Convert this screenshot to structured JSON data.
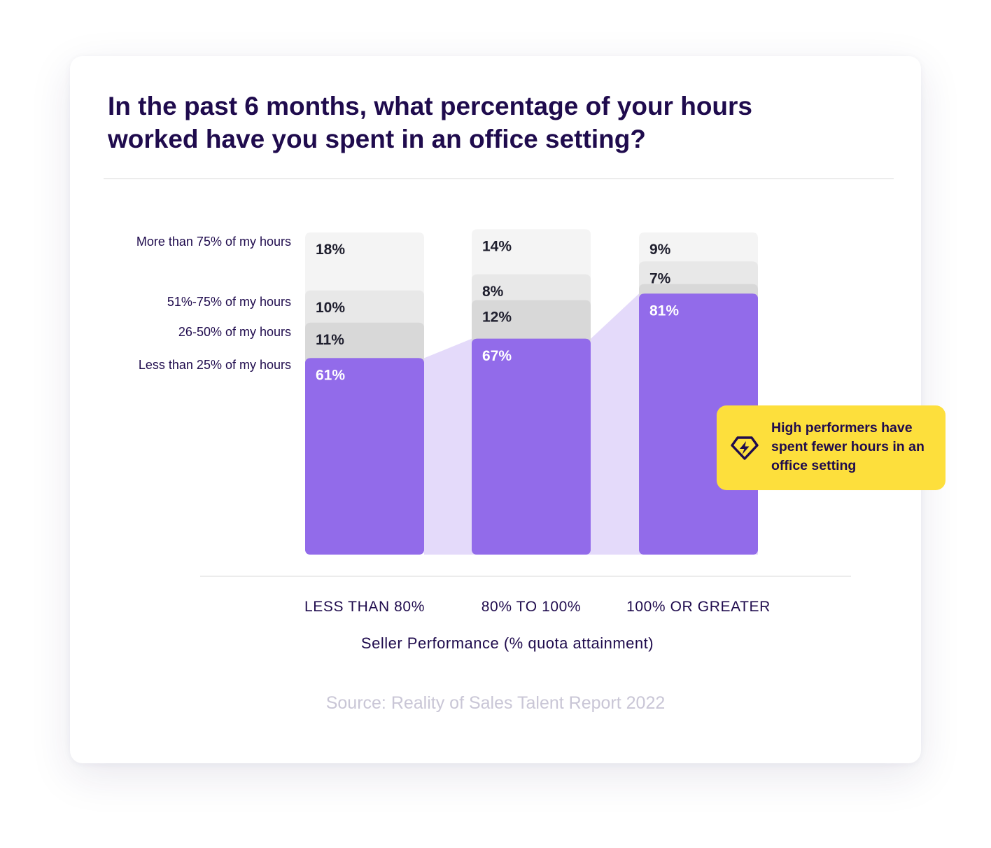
{
  "title": "In the past 6 months, what percentage of your hours worked have you spent in an office setting?",
  "source": "Source: Reality of Sales Talent Report 2022",
  "callout": {
    "text": "High performers have spent fewer hours in an office setting",
    "icon": "gem-lightning-icon"
  },
  "colors": {
    "title": "#1f0b4d",
    "accent": "#926bea",
    "accent_light": "#e4dafa",
    "callout_bg": "#fddf3c",
    "seg_51_75": "#e8e8e8",
    "seg_over_75": "#f4f4f4",
    "seg_26_50": "#d8d8d8"
  },
  "chart_data": {
    "type": "bar",
    "stacked": true,
    "categories": [
      "LESS THAN 80%",
      "80% TO 100%",
      "100% OR GREATER"
    ],
    "xlabel": "Seller Performance (% quota attainment)",
    "ylabel": "",
    "ylim": [
      0,
      100
    ],
    "series": [
      {
        "name": "Less than 25% of my hours",
        "values": [
          61,
          67,
          81
        ],
        "labels": [
          "61%",
          "67%",
          "81%"
        ],
        "color": "#926bea",
        "label_color": "#ffffff"
      },
      {
        "name": "26-50% of my hours",
        "values": [
          11,
          12,
          3
        ],
        "labels": [
          "11%",
          "12%",
          ""
        ],
        "color": "#d8d8d8",
        "label_color": "#1f1f2e"
      },
      {
        "name": "51%-75% of my hours",
        "values": [
          10,
          8,
          7
        ],
        "labels": [
          "10%",
          "8%",
          "7%"
        ],
        "color": "#e8e8e8",
        "label_color": "#1f1f2e"
      },
      {
        "name": "More than 75% of my hours",
        "values": [
          18,
          14,
          9
        ],
        "labels": [
          "18%",
          "14%",
          "9%"
        ],
        "color": "#f4f4f4",
        "label_color": "#1f1f2e"
      }
    ],
    "legend_position": "left",
    "grid": false
  }
}
